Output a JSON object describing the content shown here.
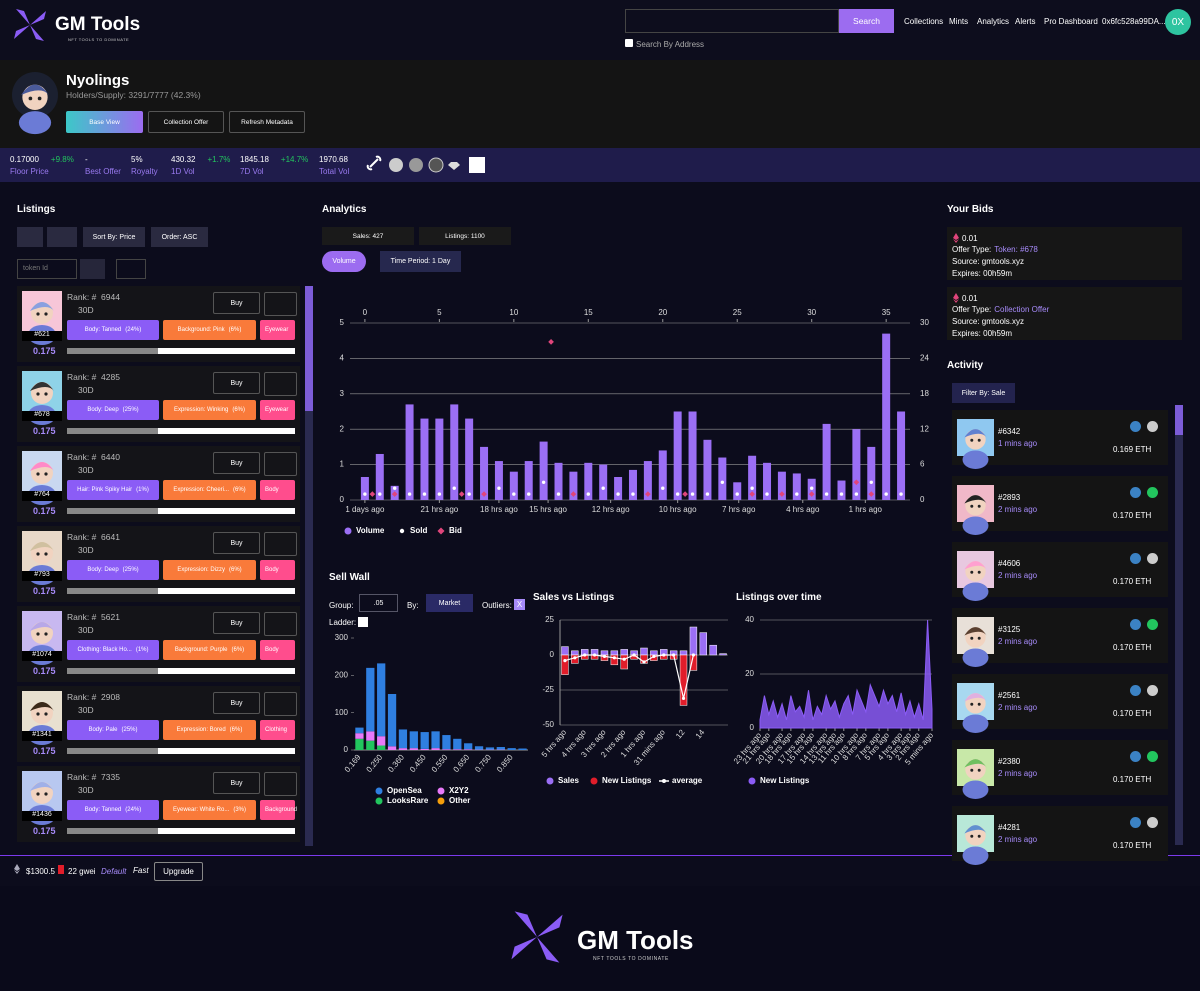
{
  "header": {
    "logo": "GM Tools",
    "tagline": "NFT TOOLS TO DOMINATE",
    "search_button": "Search",
    "search_by_address": "Search By Address",
    "nav": [
      "Collections",
      "Mints",
      "Analytics",
      "Alerts",
      "Pro Dashboard"
    ],
    "wallet": "0x6fc528a99DA...",
    "avatar": "0X"
  },
  "collection": {
    "name": "Nyolings",
    "holders": "Holders/Supply: 3291/7777 (42.3%)",
    "buttons": [
      "Base View",
      "Collection Offer",
      "Refresh Metadata"
    ]
  },
  "stats": [
    {
      "value": "0.17000",
      "change": "+9.8%",
      "label": "Floor Price"
    },
    {
      "value": "-",
      "label": "Best Offer"
    },
    {
      "value": "5%",
      "label": "Royalty"
    },
    {
      "value": "430.32",
      "change": "+1.7%",
      "label": "1D Vol"
    },
    {
      "value": "1845.18",
      "change": "+14.7%",
      "label": "7D Vol"
    },
    {
      "value": "1970.68",
      "label": "Total Vol"
    }
  ],
  "listings": {
    "title": "Listings",
    "sort": "Sort By: Price",
    "order": "Order: ASC",
    "token_placeholder": "token Id",
    "items": [
      {
        "rank": "Rank: #  6944",
        "period": "30D",
        "buy": "Buy",
        "id": "#621",
        "price": "0.175",
        "traits": [
          {
            "name": "Body: Tanned",
            "pct": "(24%)"
          },
          {
            "name": "Background: Pink",
            "pct": "(6%)"
          },
          {
            "name": "Eyewear"
          }
        ]
      },
      {
        "rank": "Rank: #  4285",
        "period": "30D",
        "buy": "Buy",
        "id": "#678",
        "price": "0.175",
        "traits": [
          {
            "name": "Body: Deep",
            "pct": "(25%)"
          },
          {
            "name": "Expression: Winking",
            "pct": "(6%)"
          },
          {
            "name": "Eyewear"
          }
        ]
      },
      {
        "rank": "Rank: #  6440",
        "period": "30D",
        "buy": "Buy",
        "id": "#764",
        "price": "0.175",
        "traits": [
          {
            "name": "Hair: Pink Spiky Hair",
            "pct": "(1%)"
          },
          {
            "name": "Expression: Cheeri...",
            "pct": "(6%)"
          },
          {
            "name": "Body"
          }
        ]
      },
      {
        "rank": "Rank: #  6641",
        "period": "30D",
        "buy": "Buy",
        "id": "#793",
        "price": "0.175",
        "traits": [
          {
            "name": "Body: Deep",
            "pct": "(25%)"
          },
          {
            "name": "Expression: Dizzy",
            "pct": "(6%)"
          },
          {
            "name": "Body"
          }
        ]
      },
      {
        "rank": "Rank: #  5621",
        "period": "30D",
        "buy": "Buy",
        "id": "#1074",
        "price": "0.175",
        "traits": [
          {
            "name": "Clothing: Black Ho...",
            "pct": "(1%)"
          },
          {
            "name": "Background: Purple",
            "pct": "(6%)"
          },
          {
            "name": "Body"
          }
        ]
      },
      {
        "rank": "Rank: #  2908",
        "period": "30D",
        "buy": "Buy",
        "id": "#1341",
        "price": "0.175",
        "traits": [
          {
            "name": "Body: Pale",
            "pct": "(25%)"
          },
          {
            "name": "Expression: Bored",
            "pct": "(6%)"
          },
          {
            "name": "Clothing"
          }
        ]
      },
      {
        "rank": "Rank: #  7335",
        "period": "30D",
        "buy": "Buy",
        "id": "#1436",
        "price": "0.175",
        "traits": [
          {
            "name": "Body: Tanned",
            "pct": "(24%)"
          },
          {
            "name": "Eyewear: White Ro...",
            "pct": "(3%)"
          },
          {
            "name": "Background"
          }
        ]
      }
    ]
  },
  "analytics": {
    "title": "Analytics",
    "sales": "Sales: 427",
    "listings": "Listings: 1100",
    "volume_button": "Volume",
    "time_period": "Time Period: 1 Day",
    "chart": {
      "type": "bar",
      "xlim": [
        -1,
        36.6
      ],
      "xticks": [
        0,
        5,
        10,
        15,
        20,
        25,
        30,
        35
      ],
      "xlabels": [
        {
          "value": 0,
          "label": "1 days ago"
        },
        {
          "value": 5,
          "label": "21 hrs ago"
        },
        {
          "value": 9,
          "label": "18 hrs ago"
        },
        {
          "value": 12.3,
          "label": "15 hrs ago"
        },
        {
          "value": 16.5,
          "label": "12 hrs ago"
        },
        {
          "value": 21,
          "label": "10 hrs ago"
        },
        {
          "value": 25.1,
          "label": "7 hrs ago"
        },
        {
          "value": 29.4,
          "label": "4 hrs ago"
        },
        {
          "value": 33.6,
          "label": "1 hrs ago"
        }
      ],
      "ylim": [
        0,
        5
      ],
      "yticks": [
        0,
        1,
        2,
        3,
        4,
        5
      ],
      "y2lim": [
        0,
        30
      ],
      "y2ticks": [
        0,
        6,
        12,
        18,
        24,
        30
      ],
      "grid": true,
      "series": [
        {
          "name": "Volume",
          "color": "#9b6ff5",
          "values": [
            0.65,
            1.3,
            0.4,
            2.7,
            2.3,
            2.3,
            2.7,
            2.3,
            1.5,
            1.1,
            0.8,
            1.1,
            1.65,
            1.05,
            0.8,
            1.05,
            1.0,
            0.65,
            0.85,
            1.1,
            1.4,
            2.5,
            2.5,
            1.7,
            1.2,
            0.5,
            1.25,
            1.05,
            0.8,
            0.75,
            0.6,
            2.15,
            0.55,
            2.0,
            1.5,
            4.7,
            2.5
          ]
        },
        {
          "name": "Sold",
          "color": "#ffffff",
          "type": "scatter",
          "axis": "y2",
          "values": [
            1,
            1,
            2,
            1,
            1,
            1,
            2,
            1,
            1,
            2,
            1,
            1,
            3,
            1,
            1,
            1,
            2,
            1,
            1,
            1,
            2,
            1,
            1,
            1,
            3,
            1,
            2,
            1,
            1,
            1,
            2,
            1,
            1,
            1,
            3,
            1,
            1
          ]
        },
        {
          "name": "Bid",
          "color": "#e0457b",
          "type": "scatter",
          "axis": "y2",
          "x": [
            0.5,
            2,
            6.5,
            8,
            12.5,
            14,
            19,
            21.5,
            26,
            28,
            30,
            33,
            34
          ],
          "values": [
            1,
            1,
            1,
            1,
            26.8,
            1,
            1,
            1,
            1,
            1,
            1,
            3,
            1
          ]
        }
      ]
    }
  },
  "sell_wall": {
    "title": "Sell Wall",
    "group_label": "Group:",
    "group": ".05",
    "by_label": "By:",
    "by": "Market",
    "outliers_label": "Outliers:",
    "outliers": "X",
    "ladder_label": "Ladder:",
    "chart": {
      "type": "bar",
      "stacked": true,
      "categories": [
        "0.169",
        null,
        "0.250",
        null,
        "0.360",
        null,
        "0.450",
        null,
        "0.550",
        null,
        "0.650",
        null,
        "0.750",
        null,
        "0.850",
        null
      ],
      "ylim": [
        0,
        300
      ],
      "yticks": [
        0,
        100,
        200,
        300
      ],
      "series": [
        {
          "name": "OpenSea",
          "color": "#2f7fe0",
          "values": [
            15,
            170,
            195,
            140,
            50,
            45,
            45,
            45,
            38,
            28,
            16,
            9,
            6,
            7,
            5,
            4
          ]
        },
        {
          "name": "X2Y2",
          "color": "#e879f9",
          "values": [
            15,
            25,
            25,
            10,
            5,
            5,
            3,
            5,
            2,
            2,
            2,
            1,
            1,
            1,
            0,
            0
          ]
        },
        {
          "name": "LooksRare",
          "color": "#22c55e",
          "values": [
            30,
            25,
            12,
            0,
            0,
            0,
            0,
            0,
            0,
            0,
            0,
            0,
            0,
            0,
            0,
            0
          ]
        },
        {
          "name": "Other",
          "color": "#f59e0b",
          "values": [
            0,
            0,
            0,
            0,
            0,
            0,
            0,
            0,
            0,
            0,
            0,
            0,
            0,
            0,
            0,
            0
          ]
        }
      ]
    }
  },
  "sales_vs_listings": {
    "title": "Sales vs Listings",
    "chart": {
      "type": "bar",
      "categories": [
        "5 hrs ago",
        null,
        "4 hrs ago",
        null,
        "3 hrs ago",
        null,
        "2 hrs ago",
        null,
        "1 hrs ago",
        null,
        "31 mins ago",
        null,
        "12",
        null,
        "14",
        null,
        null
      ],
      "ylim": [
        -50,
        25
      ],
      "yticks": [
        -50,
        -25,
        0,
        25
      ],
      "series": [
        {
          "name": "Sales",
          "color": "#9b6ff5",
          "values": [
            6,
            3,
            4,
            4,
            3,
            3,
            4,
            3,
            5,
            3,
            4,
            3,
            3,
            20,
            16,
            7,
            1
          ]
        },
        {
          "name": "New Listings",
          "color": "#e11d2a",
          "values": [
            -14,
            -6,
            -3,
            -3,
            -4,
            -7,
            -10,
            -3,
            -6,
            -4,
            -3,
            -3,
            -36,
            -11,
            0,
            0,
            0
          ]
        },
        {
          "name": "average",
          "color": "#ffffff",
          "type": "line",
          "values": [
            -4,
            -2,
            0,
            0,
            -1,
            -2,
            -3,
            0,
            -5,
            -1,
            0,
            0,
            -31,
            0,
            null,
            null,
            null
          ]
        }
      ]
    }
  },
  "listings_over_time": {
    "title": "Listings over time",
    "chart": {
      "type": "area",
      "x": [
        0,
        1,
        2,
        3,
        4,
        5,
        6,
        7,
        8,
        9,
        10,
        11,
        12,
        13,
        14,
        15,
        16,
        17,
        18,
        19,
        20,
        21,
        22,
        23,
        24,
        25,
        26,
        27,
        28,
        29,
        30,
        31,
        32,
        33,
        34,
        35,
        36,
        37,
        38,
        39
      ],
      "xticks": [
        {
          "value": 0,
          "label": "23 hrs ago"
        },
        {
          "value": 2,
          "label": "21 hrs ago"
        },
        {
          "value": 5,
          "label": "20 hrs ago"
        },
        {
          "value": 7,
          "label": "18 hrs ago"
        },
        {
          "value": 10,
          "label": "17 hrs ago"
        },
        {
          "value": 12,
          "label": "15 hrs ago"
        },
        {
          "value": 15,
          "label": "14 hrs ago"
        },
        {
          "value": 17,
          "label": "13 hrs ago"
        },
        {
          "value": 19,
          "label": "11 hrs ago"
        },
        {
          "value": 22,
          "label": "10 hrs ago"
        },
        {
          "value": 24,
          "label": "8 hrs ago"
        },
        {
          "value": 27,
          "label": "7 hrs ago"
        },
        {
          "value": 29,
          "label": "5 hrs ago"
        },
        {
          "value": 32,
          "label": "4 hrs ago"
        },
        {
          "value": 34,
          "label": "3 hrs ago"
        },
        {
          "value": 36,
          "label": "2 hrs ago"
        },
        {
          "value": 39,
          "label": "5 mins ago"
        }
      ],
      "ylim": [
        0,
        40
      ],
      "yticks": [
        0,
        20,
        40
      ],
      "series": [
        {
          "name": "New Listings",
          "color": "#8b5cf6",
          "values": [
            3,
            12,
            5,
            10,
            4,
            9,
            3,
            12,
            6,
            8,
            4,
            14,
            3,
            8,
            5,
            12,
            7,
            10,
            4,
            9,
            12,
            5,
            14,
            10,
            6,
            16,
            12,
            8,
            14,
            9,
            12,
            6,
            13,
            5,
            10,
            4,
            9,
            3,
            40,
            7
          ]
        }
      ]
    }
  },
  "bids": {
    "title": "Your Bids",
    "items": [
      {
        "amount": "0.01",
        "offer_type_label": "Offer Type:",
        "offer_type": "Token: #678",
        "source": "Source: gmtools.xyz",
        "expires": "Expires: 00h59m"
      },
      {
        "amount": "0.01",
        "offer_type_label": "Offer Type:",
        "offer_type": "Collection Offer",
        "source": "Source: gmtools.xyz",
        "expires": "Expires: 00h59m"
      }
    ]
  },
  "activity": {
    "title": "Activity",
    "filter": "Filter By: Sale",
    "items": [
      {
        "id": "#6342",
        "time": "1 mins ago",
        "price": "0.169 ETH"
      },
      {
        "id": "#2893",
        "time": "2 mins ago",
        "price": "0.170 ETH"
      },
      {
        "id": "#4606",
        "time": "2 mins ago",
        "price": "0.170 ETH"
      },
      {
        "id": "#3125",
        "time": "2 mins ago",
        "price": "0.170 ETH"
      },
      {
        "id": "#2561",
        "time": "2 mins ago",
        "price": "0.170 ETH"
      },
      {
        "id": "#2380",
        "time": "2 mins ago",
        "price": "0.170 ETH"
      },
      {
        "id": "#4281",
        "time": "2 mins ago",
        "price": "0.170 ETH"
      }
    ]
  },
  "footer": {
    "eth_price": "$1300.5",
    "gas": "22 gwei",
    "default": "Default",
    "fast": "Fast",
    "upgrade": "Upgrade",
    "logo": "GM Tools",
    "tagline": "NFT TOOLS TO DOMINATE"
  }
}
